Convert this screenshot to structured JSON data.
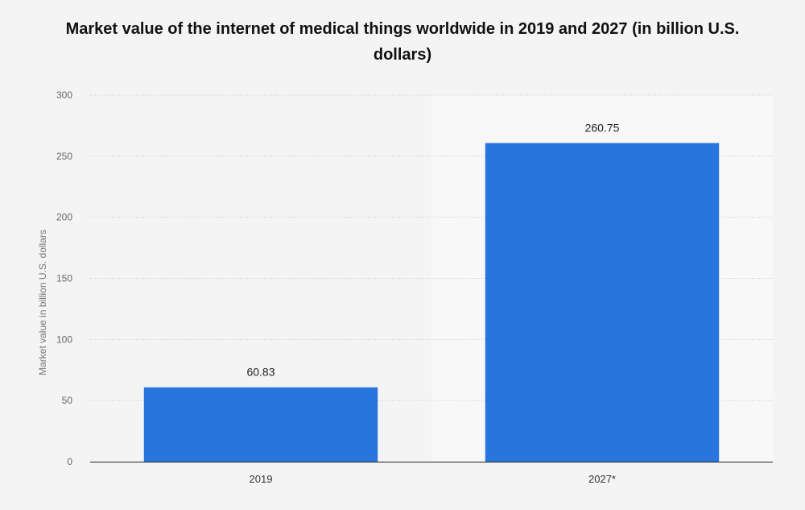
{
  "chart_data": {
    "type": "bar",
    "title": "Market value of the internet of medical things worldwide in 2019 and 2027 (in billion U.S. dollars)",
    "xlabel": "",
    "ylabel": "Market value in billion U.S. dollars",
    "categories": [
      "2019",
      "2027*"
    ],
    "values": [
      60.83,
      260.75
    ],
    "data_labels": [
      "60.83",
      "260.75"
    ],
    "ylim": [
      0,
      300
    ],
    "yticks": [
      0,
      50,
      100,
      150,
      200,
      250,
      300
    ],
    "grid": true,
    "highlighted_category": "2027*",
    "bar_color": "#2876dd"
  }
}
